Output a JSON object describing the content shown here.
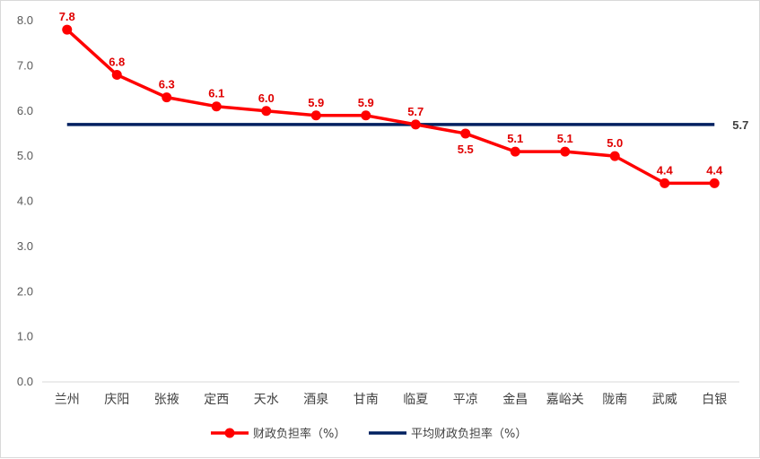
{
  "chart_data": {
    "type": "line",
    "categories": [
      "兰州",
      "庆阳",
      "张掖",
      "定西",
      "天水",
      "酒泉",
      "甘南",
      "临夏",
      "平凉",
      "金昌",
      "嘉峪关",
      "陇南",
      "武威",
      "白银"
    ],
    "series": [
      {
        "name": "财政负担率（%）",
        "color": "#ff0000",
        "values": [
          7.8,
          6.8,
          6.3,
          6.1,
          6.0,
          5.9,
          5.9,
          5.7,
          5.5,
          5.1,
          5.1,
          5.0,
          4.4,
          4.4
        ],
        "labels": [
          "7.8",
          "6.8",
          "6.3",
          "6.1",
          "6.0",
          "5.9",
          "5.9",
          "5.7",
          "5.5",
          "5.1",
          "5.1",
          "5.0",
          "4.4",
          "4.4"
        ]
      },
      {
        "name": "平均财政负担率（%）",
        "color": "#002060",
        "values": [
          5.7,
          5.7,
          5.7,
          5.7,
          5.7,
          5.7,
          5.7,
          5.7,
          5.7,
          5.7,
          5.7,
          5.7,
          5.7,
          5.7
        ],
        "end_label": "5.7"
      }
    ],
    "yticks": [
      "0.0",
      "1.0",
      "2.0",
      "3.0",
      "4.0",
      "5.0",
      "6.0",
      "7.0",
      "8.0"
    ],
    "ylim": [
      0,
      8
    ],
    "grid": false,
    "legend_position": "bottom"
  }
}
